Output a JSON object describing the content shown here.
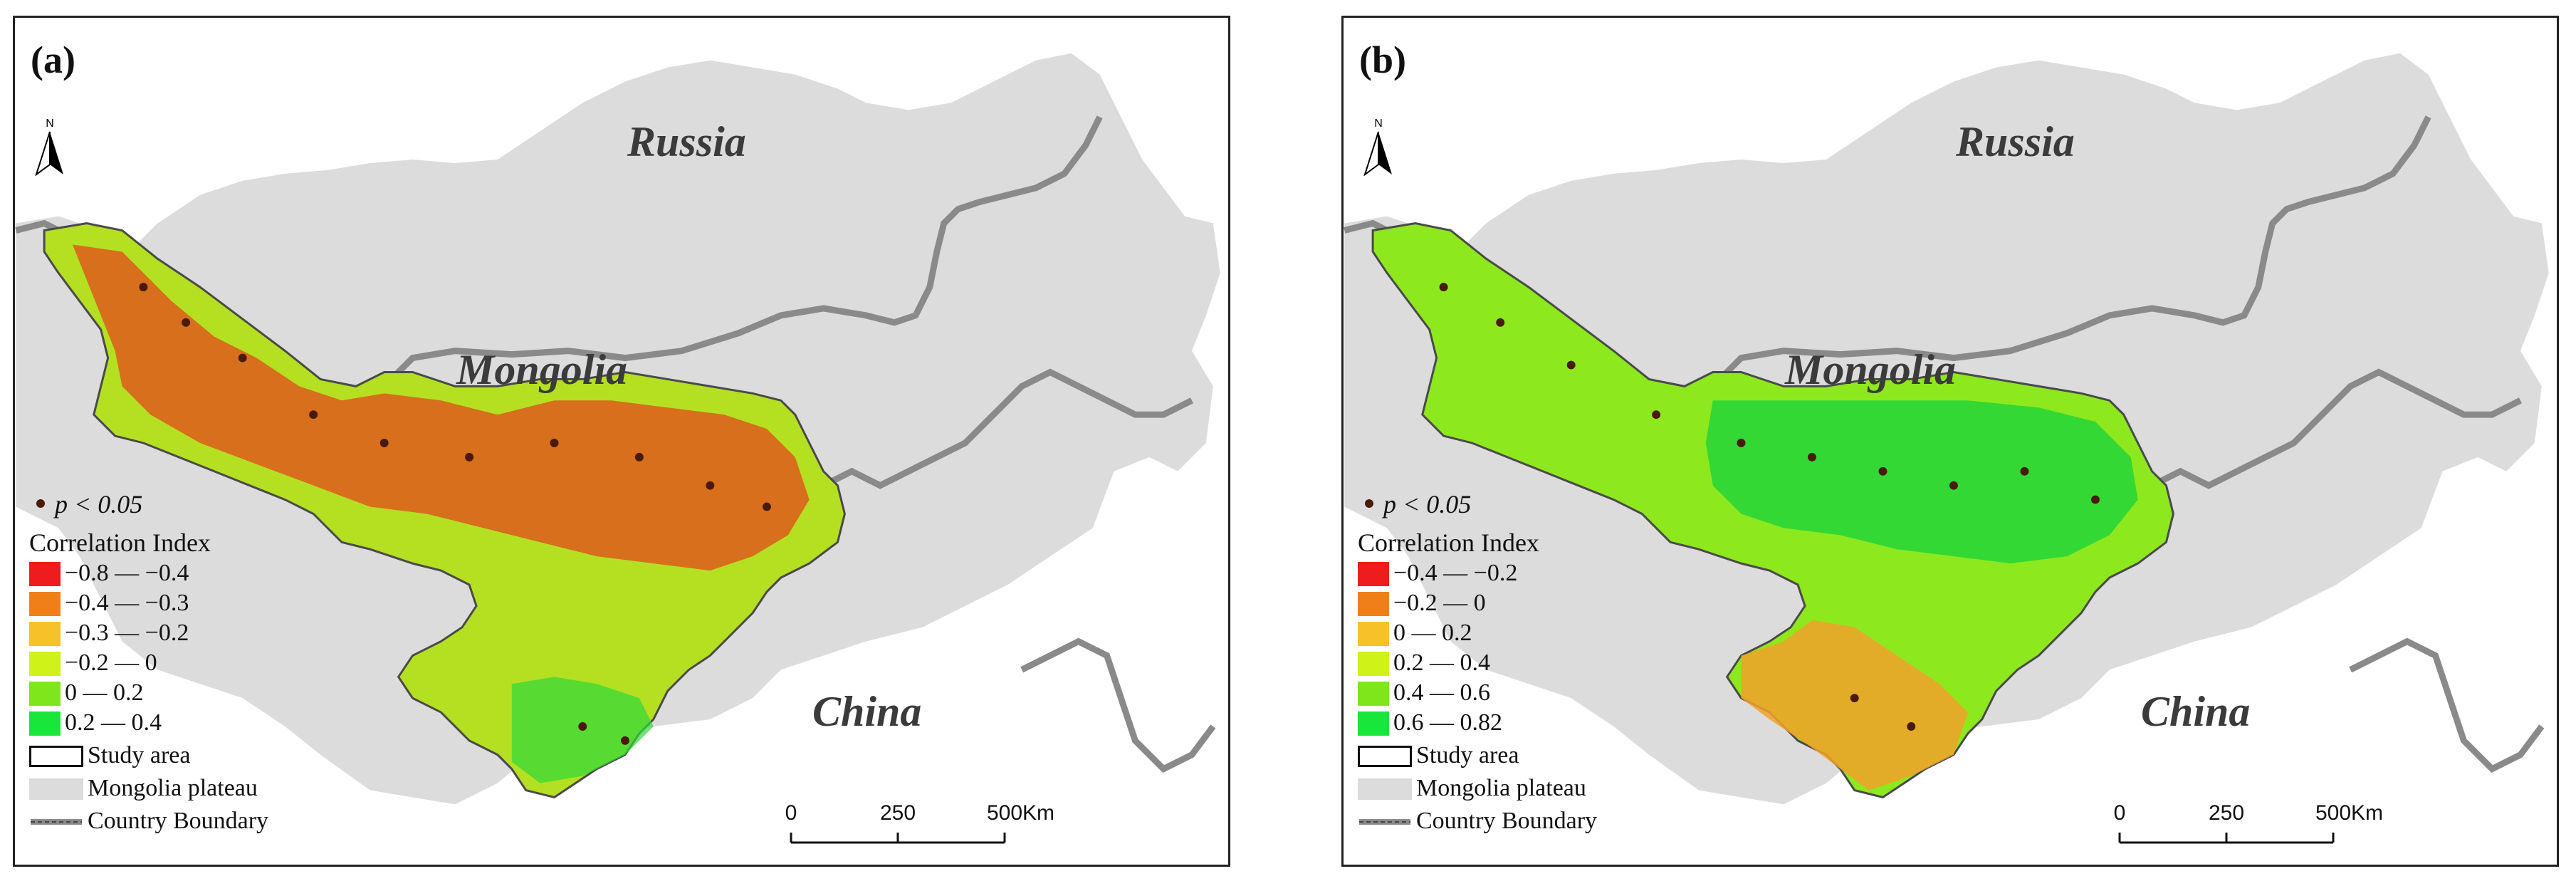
{
  "panels": [
    {
      "label": "(a)",
      "countries": [
        "Russia",
        "Mongolia",
        "China"
      ],
      "north_label": "N",
      "legend": {
        "sig_label": "p < 0.05",
        "title": "Correlation Index",
        "classes": [
          {
            "label": "−0.8 — −0.4",
            "color": "#ee1c1c"
          },
          {
            "label": "−0.4 — −0.3",
            "color": "#f07f1a"
          },
          {
            "label": "−0.3 — −0.2",
            "color": "#f7c12a"
          },
          {
            "label": "−0.2 — 0",
            "color": "#cff219"
          },
          {
            "label": "0 — 0.2",
            "color": "#7ee61a"
          },
          {
            "label": "0.2 — 0.4",
            "color": "#19e63a"
          }
        ],
        "study_area_label": "Study area",
        "plateau_label": "Mongolia plateau",
        "boundary_label": "Country Boundary"
      },
      "scale": {
        "ticks": [
          "0",
          "250",
          "500"
        ],
        "unit": "Km"
      }
    },
    {
      "label": "(b)",
      "countries": [
        "Russia",
        "Mongolia",
        "China"
      ],
      "north_label": "N",
      "legend": {
        "sig_label": "p < 0.05",
        "title": "Correlation Index",
        "classes": [
          {
            "label": "−0.4 — −0.2",
            "color": "#ee1c1c"
          },
          {
            "label": "−0.2 — 0",
            "color": "#f07f1a"
          },
          {
            "label": "0 — 0.2",
            "color": "#f7c12a"
          },
          {
            "label": "0.2 — 0.4",
            "color": "#cff219"
          },
          {
            "label": "0.4 — 0.6",
            "color": "#7ee61a"
          },
          {
            "label": "0.6 — 0.82",
            "color": "#19e63a"
          }
        ],
        "study_area_label": "Study area",
        "plateau_label": "Mongolia plateau",
        "boundary_label": "Country Boundary"
      },
      "scale": {
        "ticks": [
          "0",
          "250",
          "500"
        ],
        "unit": "Km"
      }
    }
  ],
  "colors": {
    "plateau": "#dcdcdc",
    "boundary": "#8a8a8a",
    "significance_dot": "#4a1a0a"
  }
}
